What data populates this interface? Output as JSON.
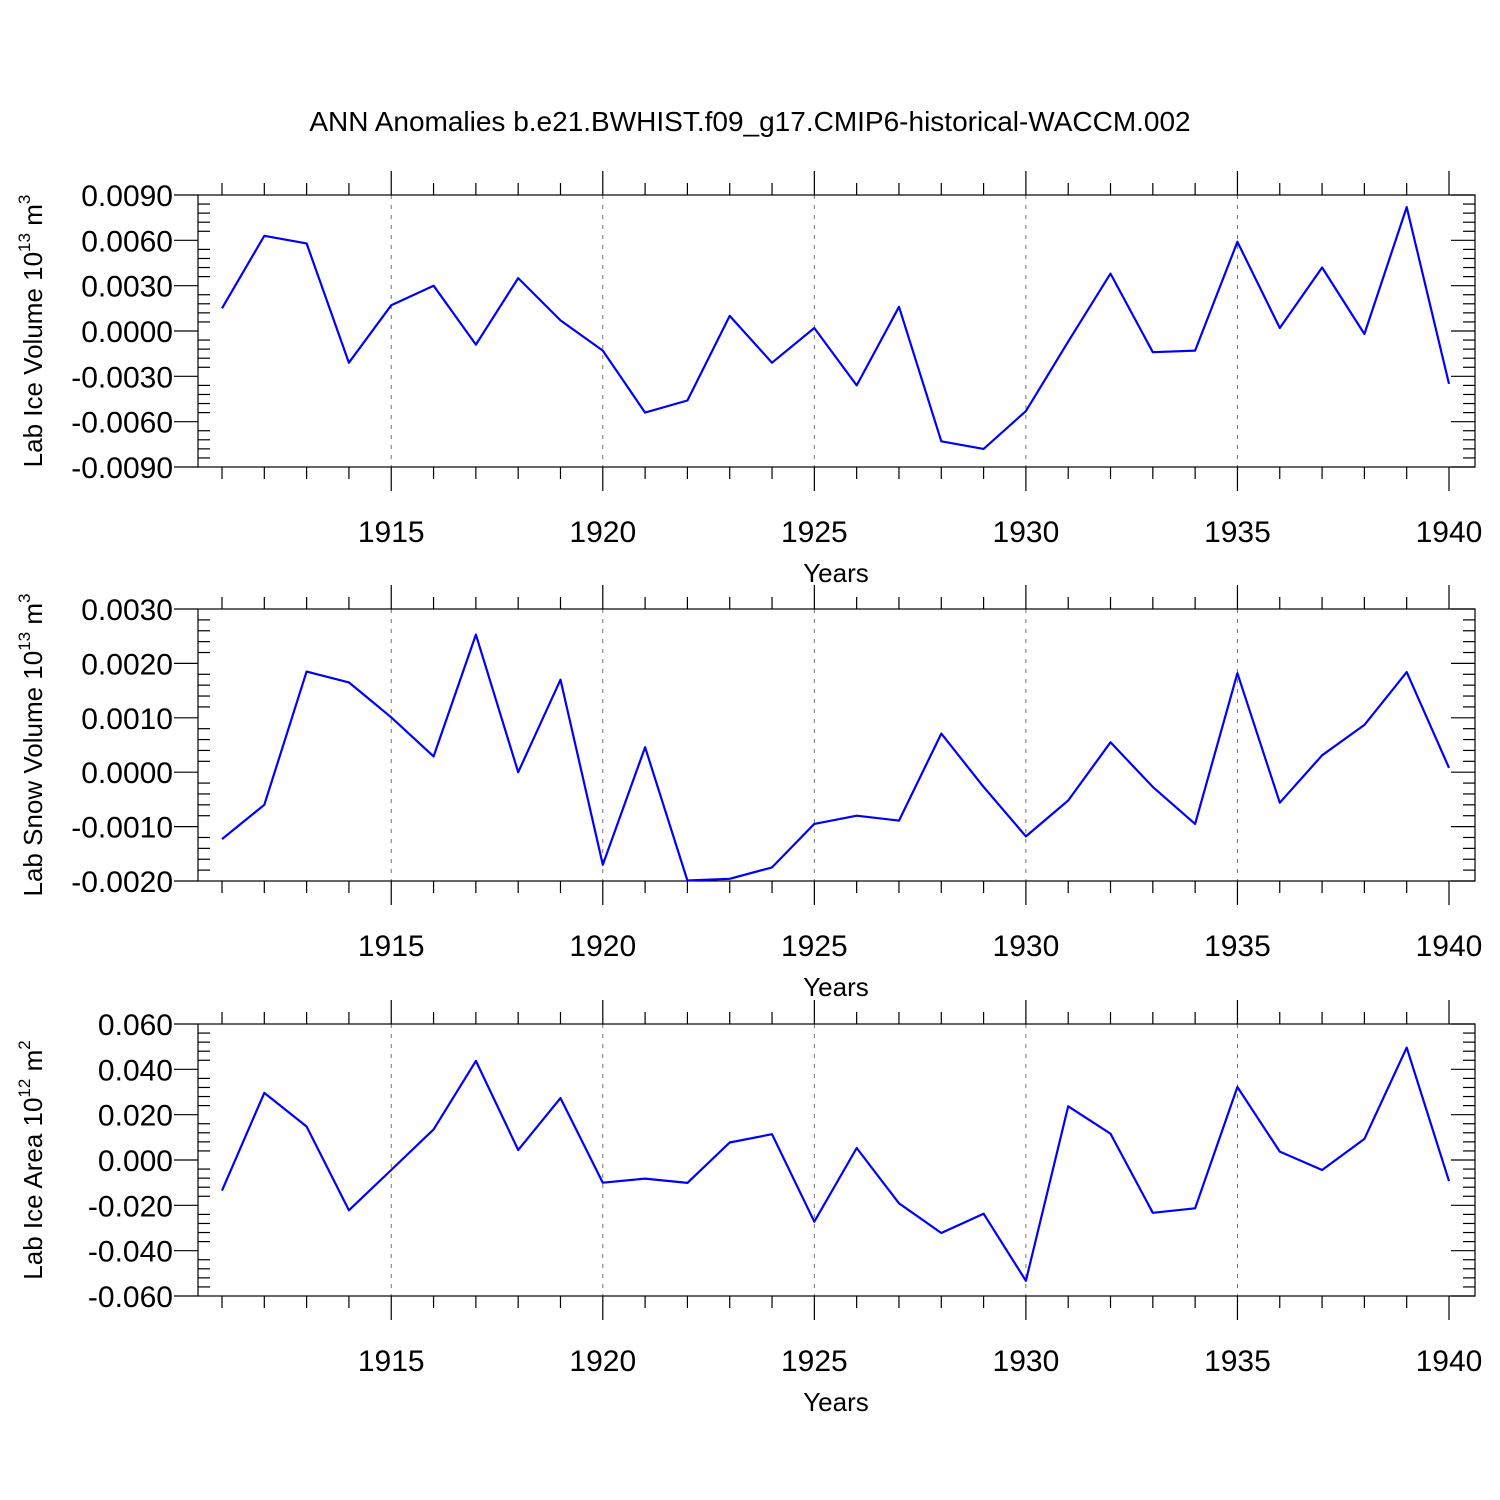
{
  "title": "ANN Anomalies b.e21.BWHIST.f09_g17.CMIP6-historical-WACCM.002",
  "chart_data": [
    {
      "type": "line",
      "xlabel": "Years",
      "ylabel": {
        "base": "Lab Ice Volume 10",
        "exp": "13",
        "unit": " m",
        "unit_exp": "3"
      },
      "xlim": [
        1911,
        1940
      ],
      "ylim": [
        -0.009,
        0.009
      ],
      "xticks": [
        1915,
        1920,
        1925,
        1930,
        1935,
        1940
      ],
      "yticks": [
        -0.009,
        -0.006,
        -0.003,
        0.0,
        0.003,
        0.006,
        0.009
      ],
      "ytick_labels": [
        "-0.0090",
        "-0.0060",
        "-0.0030",
        "0.0000",
        "0.0030",
        "0.0060",
        "0.0090"
      ],
      "grid": "dashed vertical at labeled years",
      "color": "#0000ff",
      "x": [
        1911,
        1912,
        1913,
        1914,
        1915,
        1916,
        1917,
        1918,
        1919,
        1920,
        1921,
        1922,
        1923,
        1924,
        1925,
        1926,
        1927,
        1928,
        1929,
        1930,
        1931,
        1932,
        1933,
        1934,
        1935,
        1936,
        1937,
        1938,
        1939,
        1940
      ],
      "values": [
        0.0015,
        0.0063,
        0.0058,
        -0.0021,
        0.0017,
        0.003,
        -0.0009,
        0.0035,
        0.0007,
        -0.0013,
        -0.0054,
        -0.0046,
        0.001,
        -0.0021,
        0.0002,
        -0.0036,
        0.0016,
        -0.0073,
        -0.0078,
        -0.0053,
        -0.0007,
        0.0038,
        -0.0014,
        -0.0013,
        0.0059,
        0.0002,
        0.0042,
        -0.0002,
        0.0082,
        -0.0035
      ]
    },
    {
      "type": "line",
      "xlabel": "Years",
      "ylabel": {
        "base": "Lab Snow Volume 10",
        "exp": "13",
        "unit": " m",
        "unit_exp": "3"
      },
      "xlim": [
        1911,
        1940
      ],
      "ylim": [
        -0.002,
        0.003
      ],
      "xticks": [
        1915,
        1920,
        1925,
        1930,
        1935,
        1940
      ],
      "yticks": [
        -0.002,
        -0.001,
        0.0,
        0.001,
        0.002,
        0.003
      ],
      "ytick_labels": [
        "-0.0020",
        "-0.0010",
        "0.0000",
        "0.0010",
        "0.0020",
        "0.0030"
      ],
      "grid": "dashed vertical at labeled years",
      "color": "#0000ff",
      "x": [
        1911,
        1912,
        1913,
        1914,
        1915,
        1916,
        1917,
        1918,
        1919,
        1920,
        1921,
        1922,
        1923,
        1924,
        1925,
        1926,
        1927,
        1928,
        1929,
        1930,
        1931,
        1932,
        1933,
        1934,
        1935,
        1936,
        1937,
        1938,
        1939,
        1940
      ],
      "values": [
        -0.00123,
        -0.0006,
        0.00185,
        0.00165,
        0.00101,
        0.00029,
        0.00253,
        0.0,
        0.0017,
        -0.0017,
        0.00046,
        -0.00199,
        -0.00196,
        -0.00175,
        -0.00095,
        -0.0008,
        -0.00089,
        0.00071,
        -0.00027,
        -0.00118,
        -0.00052,
        0.00055,
        -0.00027,
        -0.00095,
        0.00182,
        -0.00056,
        0.00031,
        0.00087,
        0.00184,
        8e-05
      ]
    },
    {
      "type": "line",
      "xlabel": "Years",
      "ylabel": {
        "base": "Lab Ice Area 10",
        "exp": "12",
        "unit": " m",
        "unit_exp": "2"
      },
      "xlim": [
        1911,
        1940
      ],
      "ylim": [
        -0.06,
        0.06
      ],
      "xticks": [
        1915,
        1920,
        1925,
        1930,
        1935,
        1940
      ],
      "yticks": [
        -0.06,
        -0.04,
        -0.02,
        0.0,
        0.02,
        0.04,
        0.06
      ],
      "ytick_labels": [
        "-0.060",
        "-0.040",
        "-0.020",
        "0.000",
        "0.020",
        "0.040",
        "0.060"
      ],
      "grid": "dashed vertical at labeled years",
      "color": "#0000ff",
      "x": [
        1911,
        1912,
        1913,
        1914,
        1915,
        1916,
        1917,
        1918,
        1919,
        1920,
        1921,
        1922,
        1923,
        1924,
        1925,
        1926,
        1927,
        1928,
        1929,
        1930,
        1931,
        1932,
        1933,
        1934,
        1935,
        1936,
        1937,
        1938,
        1939,
        1940
      ],
      "values": [
        -0.0135,
        0.0296,
        0.0148,
        -0.0222,
        -0.0044,
        0.0135,
        0.0437,
        0.0044,
        0.0273,
        -0.01,
        -0.0082,
        -0.0101,
        0.0077,
        0.0114,
        -0.0272,
        0.0053,
        -0.0191,
        -0.0322,
        -0.0237,
        -0.0533,
        0.0237,
        0.0116,
        -0.0233,
        -0.0213,
        0.0322,
        0.0037,
        -0.0044,
        0.0093,
        0.0496,
        -0.0093
      ]
    }
  ]
}
